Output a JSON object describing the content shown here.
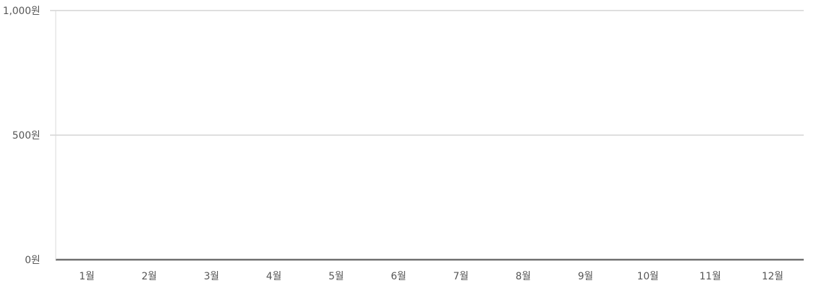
{
  "chart_data": {
    "type": "bar",
    "categories": [
      "1월",
      "2월",
      "3월",
      "4월",
      "5월",
      "6월",
      "7월",
      "8월",
      "9월",
      "10월",
      "11월",
      "12월"
    ],
    "values": [
      0,
      0,
      0,
      0,
      0,
      0,
      0,
      0,
      0,
      0,
      0,
      0
    ],
    "y_ticks": [
      {
        "value": 0,
        "label": "0원"
      },
      {
        "value": 500,
        "label": "500원"
      },
      {
        "value": 1000,
        "label": "1,000원"
      }
    ],
    "ylim": [
      0,
      1000
    ],
    "grid": true,
    "legend": "none"
  },
  "colors": {
    "grid": "#d3d3d3",
    "baseline": "#6e6e6e",
    "axis": "#d8d8d8",
    "tick_text": "#555555",
    "bar": "#4a90d9"
  }
}
